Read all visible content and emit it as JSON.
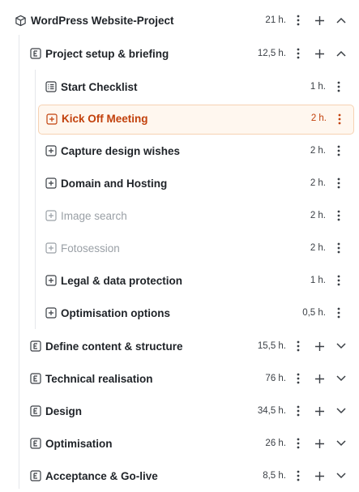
{
  "project": {
    "title": "WordPress Website-Project",
    "hours": "21 h."
  },
  "phase1": {
    "title": "Project setup & briefing",
    "hours": "12,5 h.",
    "tasks": [
      {
        "label": "Start Checklist",
        "hours": "1 h.",
        "icon": "checklist-icon",
        "state": "normal"
      },
      {
        "label": "Kick Off Meeting",
        "hours": "2 h.",
        "icon": "plus-square-icon",
        "state": "active"
      },
      {
        "label": "Capture design wishes",
        "hours": "2 h.",
        "icon": "plus-square-icon",
        "state": "normal"
      },
      {
        "label": "Domain and Hosting",
        "hours": "2 h.",
        "icon": "plus-square-icon",
        "state": "normal"
      },
      {
        "label": "Image search",
        "hours": "2 h.",
        "icon": "plus-square-icon",
        "state": "muted"
      },
      {
        "label": "Fotosession",
        "hours": "2 h.",
        "icon": "plus-square-icon",
        "state": "muted"
      },
      {
        "label": "Legal & data protection",
        "hours": "1 h.",
        "icon": "plus-square-icon",
        "state": "normal"
      },
      {
        "label": "Optimisation options",
        "hours": "0,5 h.",
        "icon": "plus-square-icon",
        "state": "normal"
      }
    ]
  },
  "phases": [
    {
      "title": "Define content & structure",
      "hours": "15,5 h."
    },
    {
      "title": "Technical realisation",
      "hours": "76 h."
    },
    {
      "title": "Design",
      "hours": "34,5 h."
    },
    {
      "title": "Optimisation",
      "hours": "26 h."
    },
    {
      "title": "Acceptance & Go-live",
      "hours": "8,5 h."
    }
  ],
  "colors": {
    "accent": "#c2410c",
    "active_bg": "#fff7ef",
    "active_border": "#f6d2b3",
    "muted": "#9aa0a6"
  }
}
